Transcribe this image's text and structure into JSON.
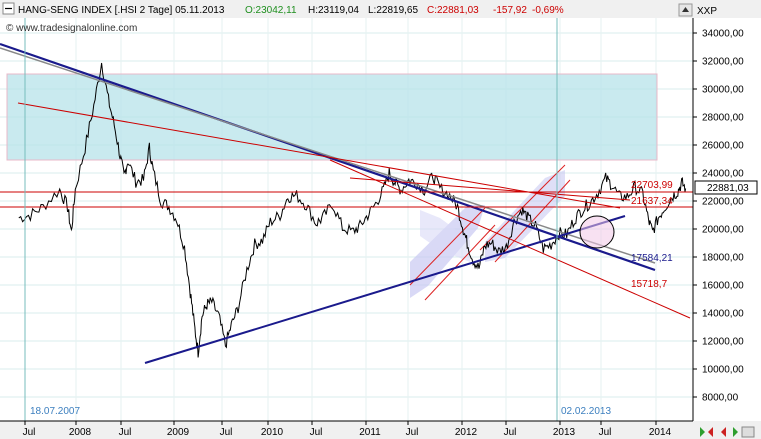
{
  "header": {
    "instrument": "HANG-SENG INDEX [.HSI  2 Tage] 05.11.2013",
    "open": "O:23042,11",
    "high": "H:23119,04",
    "low": "L:22819,65",
    "close": "C:22881,03",
    "change": "-157,92",
    "change_pct": "-0,69%"
  },
  "watermark": "© www.tradesignalonline.com",
  "axis_title": "XXP",
  "current_price_label": "22881,03",
  "colors": {
    "price": "#000000",
    "support_line": "#1a1a8c",
    "resistance_line": "#cc0000",
    "zone_fill": "#b7e3ea",
    "channel_fill": "#c9c9f2",
    "grid": "#b6d9d9",
    "up_arrow": "#2e9e2e",
    "down_arrow": "#cc2222"
  },
  "chart_data": {
    "type": "line",
    "title": "HANG-SENG INDEX [.HSI  2 Tage] 05.11.2013",
    "ylim": [
      7000,
      35500
    ],
    "y_ticks": [
      "34000,00",
      "32000,00",
      "30000,00",
      "28000,00",
      "26000,00",
      "24000,00",
      "22000,00",
      "20000,00",
      "18000,00",
      "16000,00",
      "14000,00",
      "12000,00",
      "10000,00",
      "8000,00"
    ],
    "x_ticks": [
      "Jul",
      "2008",
      "Jul",
      "2009",
      "Jul",
      "2010",
      "Jul",
      "2011",
      "Jul",
      "2012",
      "Jul",
      "2013",
      "Jul",
      "2014"
    ],
    "series": [
      {
        "values": [
          [
            2007.0,
            20800
          ],
          [
            2007.12,
            21000
          ],
          [
            2007.25,
            21600
          ],
          [
            2007.42,
            22800
          ],
          [
            2007.5,
            21600
          ],
          [
            2007.54,
            19800
          ],
          [
            2007.58,
            22800
          ],
          [
            2007.68,
            25800
          ],
          [
            2007.77,
            28800
          ],
          [
            2007.85,
            31900
          ],
          [
            2007.92,
            29200
          ],
          [
            2007.98,
            27400
          ],
          [
            2008.04,
            25200
          ],
          [
            2008.08,
            23800
          ],
          [
            2008.12,
            24900
          ],
          [
            2008.2,
            23400
          ],
          [
            2008.28,
            23500
          ],
          [
            2008.34,
            25800
          ],
          [
            2008.38,
            24100
          ],
          [
            2008.46,
            22000
          ],
          [
            2008.54,
            21600
          ],
          [
            2008.62,
            20700
          ],
          [
            2008.7,
            18700
          ],
          [
            2008.76,
            15500
          ],
          [
            2008.8,
            13200
          ],
          [
            2008.84,
            11200
          ],
          [
            2008.88,
            13800
          ],
          [
            2008.93,
            14600
          ],
          [
            2008.98,
            14800
          ],
          [
            2009.05,
            13800
          ],
          [
            2009.12,
            11700
          ],
          [
            2009.18,
            13100
          ],
          [
            2009.25,
            14400
          ],
          [
            2009.34,
            17100
          ],
          [
            2009.42,
            18900
          ],
          [
            2009.5,
            19200
          ],
          [
            2009.58,
            20500
          ],
          [
            2009.68,
            21000
          ],
          [
            2009.76,
            22300
          ],
          [
            2009.85,
            22400
          ],
          [
            2009.95,
            21700
          ],
          [
            2010.05,
            20400
          ],
          [
            2010.12,
            20800
          ],
          [
            2010.22,
            21800
          ],
          [
            2010.32,
            20100
          ],
          [
            2010.42,
            19800
          ],
          [
            2010.5,
            20200
          ],
          [
            2010.58,
            21000
          ],
          [
            2010.66,
            21800
          ],
          [
            2010.74,
            22800
          ],
          [
            2010.8,
            24000
          ],
          [
            2010.86,
            23300
          ],
          [
            2010.92,
            22800
          ],
          [
            2011.0,
            23500
          ],
          [
            2011.08,
            23300
          ],
          [
            2011.16,
            22800
          ],
          [
            2011.25,
            23800
          ],
          [
            2011.32,
            22900
          ],
          [
            2011.42,
            22400
          ],
          [
            2011.5,
            21600
          ],
          [
            2011.56,
            20000
          ],
          [
            2011.6,
            19000
          ],
          [
            2011.66,
            17800
          ],
          [
            2011.72,
            17200
          ],
          [
            2011.78,
            18800
          ],
          [
            2011.85,
            19000
          ],
          [
            2011.92,
            18400
          ],
          [
            2012.0,
            18700
          ],
          [
            2012.08,
            20500
          ],
          [
            2012.16,
            21400
          ],
          [
            2012.22,
            20800
          ],
          [
            2012.3,
            20200
          ],
          [
            2012.38,
            18600
          ],
          [
            2012.46,
            18900
          ],
          [
            2012.54,
            19700
          ],
          [
            2012.62,
            19600
          ],
          [
            2012.7,
            20700
          ],
          [
            2012.78,
            21400
          ],
          [
            2012.86,
            21900
          ],
          [
            2012.94,
            22600
          ],
          [
            2013.02,
            23600
          ],
          [
            2013.08,
            23200
          ],
          [
            2013.16,
            22300
          ],
          [
            2013.24,
            22300
          ],
          [
            2013.32,
            23000
          ],
          [
            2013.4,
            22500
          ],
          [
            2013.46,
            20600
          ],
          [
            2013.5,
            19800
          ],
          [
            2013.56,
            20800
          ],
          [
            2013.62,
            21500
          ],
          [
            2013.7,
            22300
          ],
          [
            2013.76,
            22700
          ],
          [
            2013.8,
            23300
          ],
          [
            2013.84,
            22900
          ]
        ]
      }
    ],
    "annotations": {
      "dates": [
        "18.07.2007",
        "02.02.2013"
      ],
      "horizontal_levels": [
        {
          "value": 22703.99,
          "label": "22703,99"
        },
        {
          "value": 21637.34,
          "label": "21637,34"
        }
      ],
      "trendline_labels": [
        {
          "value": 17584.21,
          "label": "17584,21"
        },
        {
          "value": 15718.7,
          "label": "15718,7"
        }
      ]
    }
  }
}
